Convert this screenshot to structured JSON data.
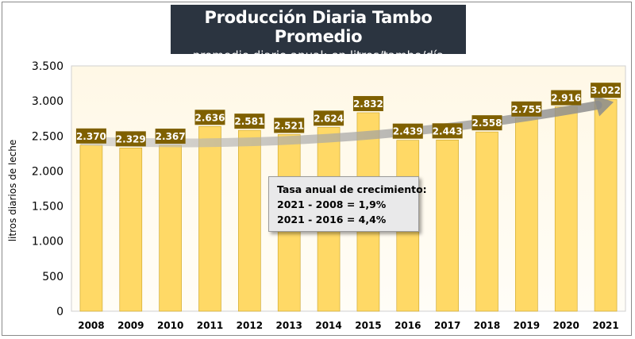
{
  "chart_data": {
    "type": "bar",
    "title": "Producción Diaria Tambo Promedio",
    "subtitle": "- promedio diario anual: en litros/tambo/día -",
    "ylabel": "litros diarios de leche",
    "xlabel": "",
    "categories": [
      "2008",
      "2009",
      "2010",
      "2011",
      "2012",
      "2013",
      "2014",
      "2015",
      "2016",
      "2017",
      "2018",
      "2019",
      "2020",
      "2021"
    ],
    "values": [
      2370,
      2329,
      2367,
      2636,
      2581,
      2521,
      2624,
      2832,
      2439,
      2443,
      2558,
      2755,
      2916,
      3022
    ],
    "value_labels": [
      "2.370",
      "2.329",
      "2.367",
      "2.636",
      "2.581",
      "2.521",
      "2.624",
      "2.832",
      "2.439",
      "2.443",
      "2.558",
      "2.755",
      "2.916",
      "3.022"
    ],
    "ylim": [
      0,
      3500
    ],
    "yticks": [
      0,
      500,
      1000,
      1500,
      2000,
      2500,
      3000,
      3500
    ],
    "ytick_labels": [
      "0",
      "500",
      "1.000",
      "1.500",
      "2.000",
      "2.500",
      "3.000",
      "3.500"
    ],
    "grid": false,
    "legend": "none",
    "trend_arrow": true,
    "annotation": {
      "title": "Tasa anual de crecimiento:",
      "lines": [
        "2021 - 2008 = 1,9%",
        "2021 - 2016 = 4,4%"
      ]
    }
  },
  "colors": {
    "bar_fill": "#ffd966",
    "bar_stroke": "#c9a227",
    "label_bg": "#7f6000",
    "label_text": "#ffffff",
    "title_bg": "#2b3440",
    "trend_arrow": "#a6a6a6"
  }
}
